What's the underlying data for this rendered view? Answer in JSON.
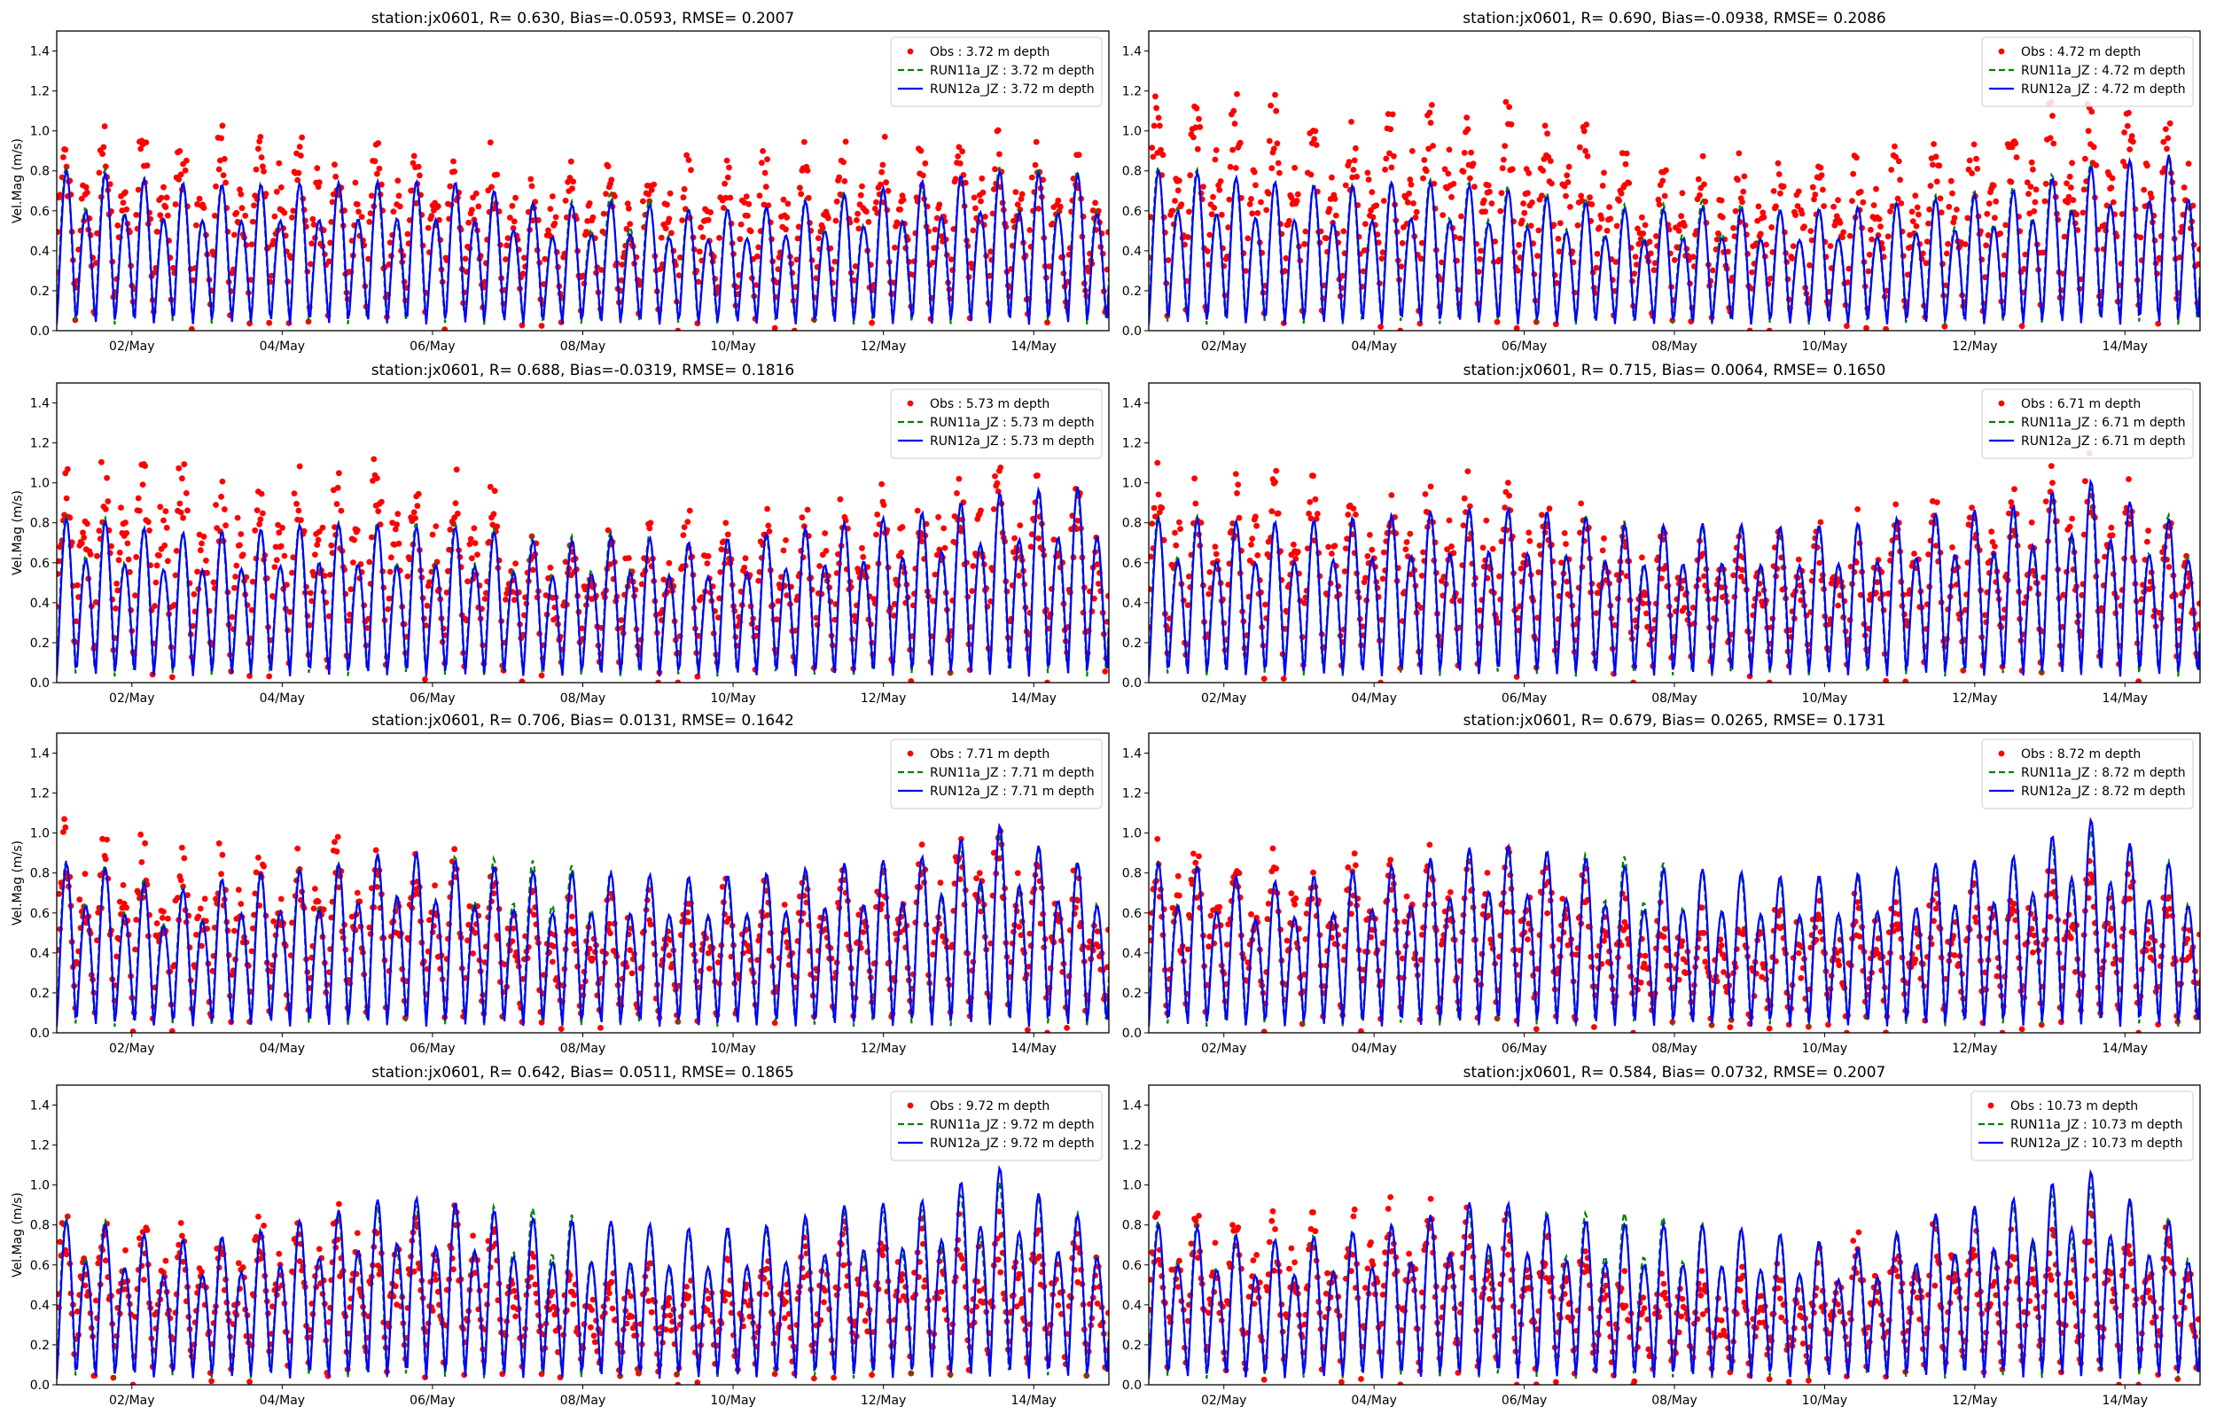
{
  "figure": {
    "ylabel": "Vel.Mag (m/s)",
    "month": "May"
  },
  "chart_data": [
    {
      "type": "line",
      "title": "station:jx0601, R= 0.630, Bias=-0.0593, RMSE= 0.2007",
      "depth": "3.72",
      "legend": [
        "Obs : 3.72 m depth",
        "RUN11a_JZ : 3.72 m depth",
        "RUN12a_JZ : 3.72 m depth"
      ],
      "run12a_daily_peak": [
        0.8,
        0.74,
        0.73,
        0.74,
        0.75,
        0.74,
        0.62,
        0.65,
        0.6,
        0.62,
        0.68,
        0.75,
        0.8,
        0.78
      ],
      "run11a_daily_peak": [
        0.82,
        0.74,
        0.73,
        0.74,
        0.72,
        0.74,
        0.62,
        0.7,
        0.6,
        0.62,
        0.7,
        0.72,
        0.82,
        0.8
      ],
      "obs_daily_max": [
        1.0,
        1.02,
        1.0,
        1.02,
        0.95,
        0.96,
        0.82,
        0.84,
        0.92,
        0.88,
        0.98,
        0.95,
        1.0,
        0.86
      ]
    },
    {
      "type": "line",
      "title": "station:jx0601, R= 0.690, Bias=-0.0938, RMSE= 0.2086",
      "depth": "4.72",
      "legend": [
        "Obs : 4.72 m depth",
        "RUN11a_JZ : 4.72 m depth",
        "RUN12a_JZ : 4.72 m depth"
      ],
      "run12a_daily_peak": [
        0.8,
        0.75,
        0.72,
        0.75,
        0.72,
        0.66,
        0.6,
        0.62,
        0.6,
        0.62,
        0.66,
        0.7,
        0.82,
        0.88
      ],
      "run11a_daily_peak": [
        0.82,
        0.74,
        0.72,
        0.76,
        0.74,
        0.68,
        0.62,
        0.66,
        0.6,
        0.62,
        0.68,
        0.72,
        0.84,
        0.86
      ],
      "obs_daily_max": [
        1.2,
        1.2,
        1.0,
        1.15,
        1.12,
        1.14,
        0.88,
        0.85,
        0.9,
        0.92,
        0.95,
        1.1,
        1.15,
        1.1
      ]
    },
    {
      "type": "line",
      "title": "station:jx0601, R= 0.688, Bias=-0.0319, RMSE= 0.1816",
      "depth": "5.73",
      "legend": [
        "Obs : 5.73 m depth",
        "RUN11a_JZ : 5.73 m depth",
        "RUN12a_JZ : 5.73 m depth"
      ],
      "run12a_daily_peak": [
        0.82,
        0.75,
        0.76,
        0.8,
        0.78,
        0.78,
        0.7,
        0.74,
        0.7,
        0.75,
        0.8,
        0.85,
        0.95,
        0.98
      ],
      "run11a_daily_peak": [
        0.84,
        0.74,
        0.76,
        0.8,
        0.8,
        0.8,
        0.72,
        0.76,
        0.7,
        0.74,
        0.8,
        0.84,
        0.94,
        0.96
      ],
      "obs_daily_max": [
        1.18,
        1.13,
        1.05,
        1.12,
        1.1,
        1.05,
        0.75,
        0.8,
        0.85,
        0.85,
        0.95,
        1.0,
        1.15,
        0.95
      ]
    },
    {
      "type": "line",
      "title": "station:jx0601, R= 0.715, Bias= 0.0064, RMSE= 0.1650",
      "depth": "6.71",
      "legend": [
        "Obs : 6.71 m depth",
        "RUN11a_JZ : 6.71 m depth",
        "RUN12a_JZ : 6.71 m depth"
      ],
      "run12a_daily_peak": [
        0.82,
        0.8,
        0.82,
        0.85,
        0.88,
        0.85,
        0.78,
        0.8,
        0.78,
        0.8,
        0.85,
        0.88,
        1.02,
        0.82
      ],
      "run11a_daily_peak": [
        0.84,
        0.8,
        0.82,
        0.84,
        0.86,
        0.86,
        0.8,
        0.78,
        0.76,
        0.8,
        0.84,
        0.86,
        0.98,
        0.84
      ],
      "obs_daily_max": [
        1.08,
        1.05,
        1.0,
        1.05,
        1.05,
        1.0,
        0.75,
        0.78,
        0.82,
        0.85,
        0.9,
        0.98,
        1.18,
        0.85
      ]
    },
    {
      "type": "line",
      "title": "station:jx0601, R= 0.706, Bias= 0.0131, RMSE= 0.1642",
      "depth": "7.71",
      "legend": [
        "Obs : 7.71 m depth",
        "RUN11a_JZ : 7.71 m depth",
        "RUN12a_JZ : 7.71 m depth"
      ],
      "run12a_daily_peak": [
        0.85,
        0.7,
        0.8,
        0.82,
        0.92,
        0.85,
        0.8,
        0.8,
        0.78,
        0.8,
        0.85,
        0.88,
        1.05,
        0.85
      ],
      "run11a_daily_peak": [
        0.86,
        0.72,
        0.8,
        0.84,
        0.9,
        0.88,
        0.86,
        0.8,
        0.76,
        0.78,
        0.84,
        0.86,
        1.0,
        0.86
      ],
      "obs_daily_max": [
        1.05,
        0.95,
        0.95,
        0.98,
        0.9,
        0.9,
        0.65,
        0.68,
        0.72,
        0.8,
        0.85,
        0.92,
        1.08,
        0.85
      ]
    },
    {
      "type": "line",
      "title": "station:jx0601, R= 0.679, Bias= 0.0265, RMSE= 0.1731",
      "depth": "8.72",
      "legend": [
        "Obs : 8.72 m depth",
        "RUN11a_JZ : 8.72 m depth",
        "RUN12a_JZ : 8.72 m depth"
      ],
      "run12a_daily_peak": [
        0.85,
        0.75,
        0.8,
        0.85,
        0.95,
        0.9,
        0.82,
        0.82,
        0.78,
        0.8,
        0.85,
        0.88,
        1.08,
        0.85
      ],
      "run11a_daily_peak": [
        0.86,
        0.74,
        0.8,
        0.84,
        0.92,
        0.9,
        0.88,
        0.8,
        0.76,
        0.78,
        0.84,
        0.86,
        1.02,
        0.86
      ],
      "obs_daily_max": [
        0.95,
        0.9,
        0.92,
        0.95,
        0.95,
        0.9,
        0.65,
        0.6,
        0.65,
        0.7,
        0.75,
        0.82,
        0.9,
        0.8
      ]
    },
    {
      "type": "line",
      "title": "station:jx0601, R= 0.642, Bias= 0.0511, RMSE= 0.1865",
      "depth": "9.72",
      "legend": [
        "Obs : 9.72 m depth",
        "RUN11a_JZ : 9.72 m depth",
        "RUN12a_JZ : 9.72 m depth"
      ],
      "run12a_daily_peak": [
        0.82,
        0.72,
        0.75,
        0.85,
        0.95,
        0.9,
        0.82,
        0.82,
        0.78,
        0.8,
        0.9,
        0.92,
        1.1,
        0.85
      ],
      "run11a_daily_peak": [
        0.84,
        0.72,
        0.76,
        0.84,
        0.9,
        0.9,
        0.88,
        0.8,
        0.76,
        0.78,
        0.86,
        0.88,
        1.02,
        0.86
      ],
      "obs_daily_max": [
        0.85,
        0.8,
        0.82,
        0.93,
        0.85,
        0.9,
        0.6,
        0.58,
        0.6,
        0.65,
        0.8,
        0.82,
        0.85,
        0.78
      ]
    },
    {
      "type": "line",
      "title": "station:jx0601, R= 0.584, Bias= 0.0732, RMSE= 0.2007",
      "depth": "10.73",
      "legend": [
        "Obs : 10.73 m depth",
        "RUN11a_JZ : 10.73 m depth",
        "RUN12a_JZ : 10.73 m depth"
      ],
      "run12a_daily_peak": [
        0.8,
        0.72,
        0.75,
        0.82,
        0.94,
        0.83,
        0.8,
        0.8,
        0.75,
        0.68,
        0.86,
        0.93,
        1.08,
        0.82
      ],
      "run11a_daily_peak": [
        0.82,
        0.72,
        0.76,
        0.82,
        0.88,
        0.86,
        0.86,
        0.8,
        0.74,
        0.66,
        0.84,
        0.9,
        1.0,
        0.84
      ],
      "obs_daily_max": [
        0.86,
        0.85,
        0.84,
        0.95,
        0.85,
        0.8,
        0.55,
        0.55,
        0.6,
        0.75,
        0.8,
        0.82,
        0.85,
        0.78
      ]
    }
  ],
  "axes": {
    "xlim_days": [
      1,
      15
    ],
    "x_ticks": [
      {
        "day": 2,
        "label": "02/May"
      },
      {
        "day": 4,
        "label": "04/May"
      },
      {
        "day": 6,
        "label": "06/May"
      },
      {
        "day": 8,
        "label": "08/May"
      },
      {
        "day": 10,
        "label": "10/May"
      },
      {
        "day": 12,
        "label": "12/May"
      },
      {
        "day": 14,
        "label": "14/May"
      }
    ],
    "ylim": [
      0,
      1.5
    ],
    "y_ticks": [
      "0.0",
      "0.2",
      "0.4",
      "0.6",
      "0.8",
      "1.0",
      "1.2",
      "1.4"
    ]
  },
  "colors": {
    "obs": "#ff0000",
    "run11a": "#008000",
    "run12a": "#0000ff"
  }
}
